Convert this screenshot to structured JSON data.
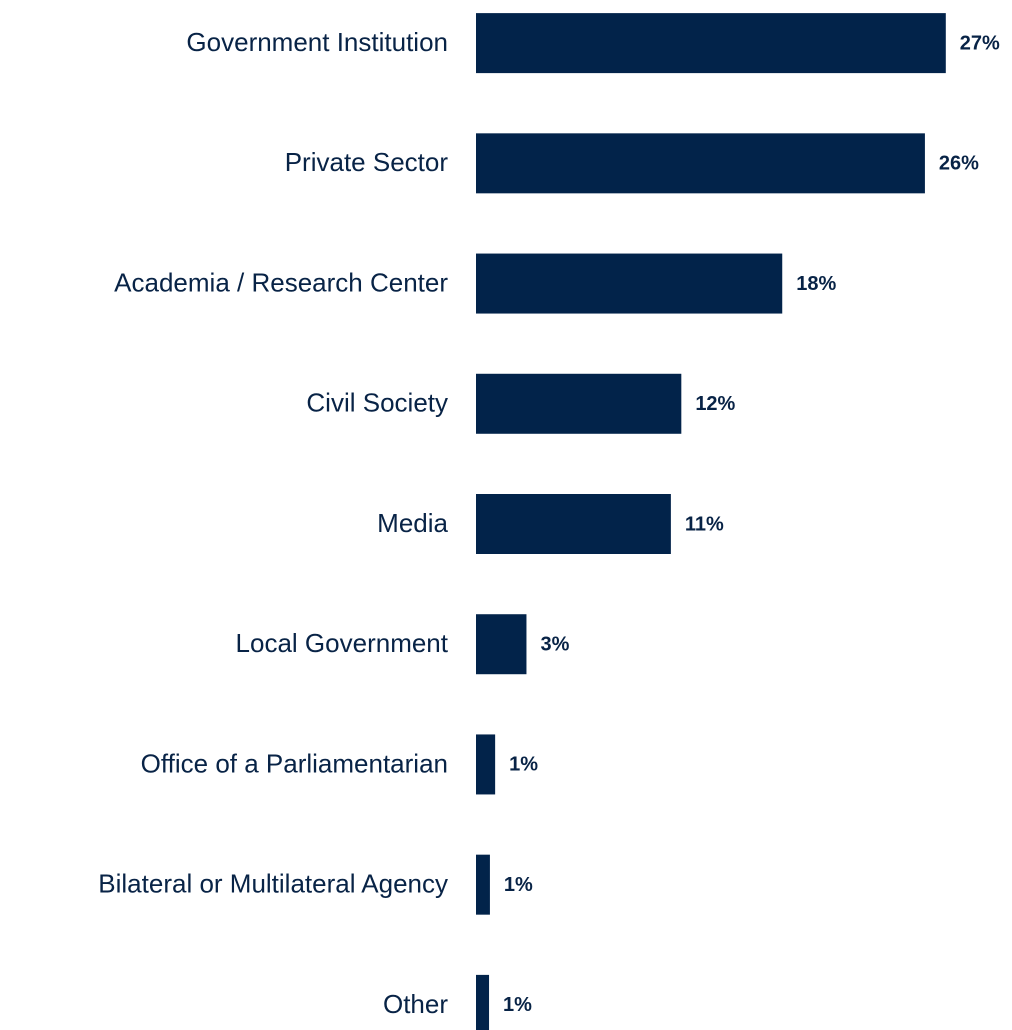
{
  "chart_data": {
    "type": "barh",
    "categories": [
      "Government Institution",
      "Private Sector",
      "Academia / Research Center",
      "Civil Society",
      "Media",
      "Local Government",
      "Office of a Parliamentarian",
      "Bilateral or Multilateral Agency",
      "Other"
    ],
    "values": [
      27,
      25.8,
      17.6,
      11.8,
      11.2,
      2.9,
      1.1,
      0.8,
      0.75
    ],
    "value_labels": [
      "27%",
      "26%",
      "18%",
      "12%",
      "11%",
      "3%",
      "1%",
      "1%",
      "1%"
    ],
    "color": "#02234a",
    "xlim": [
      0,
      30
    ]
  }
}
